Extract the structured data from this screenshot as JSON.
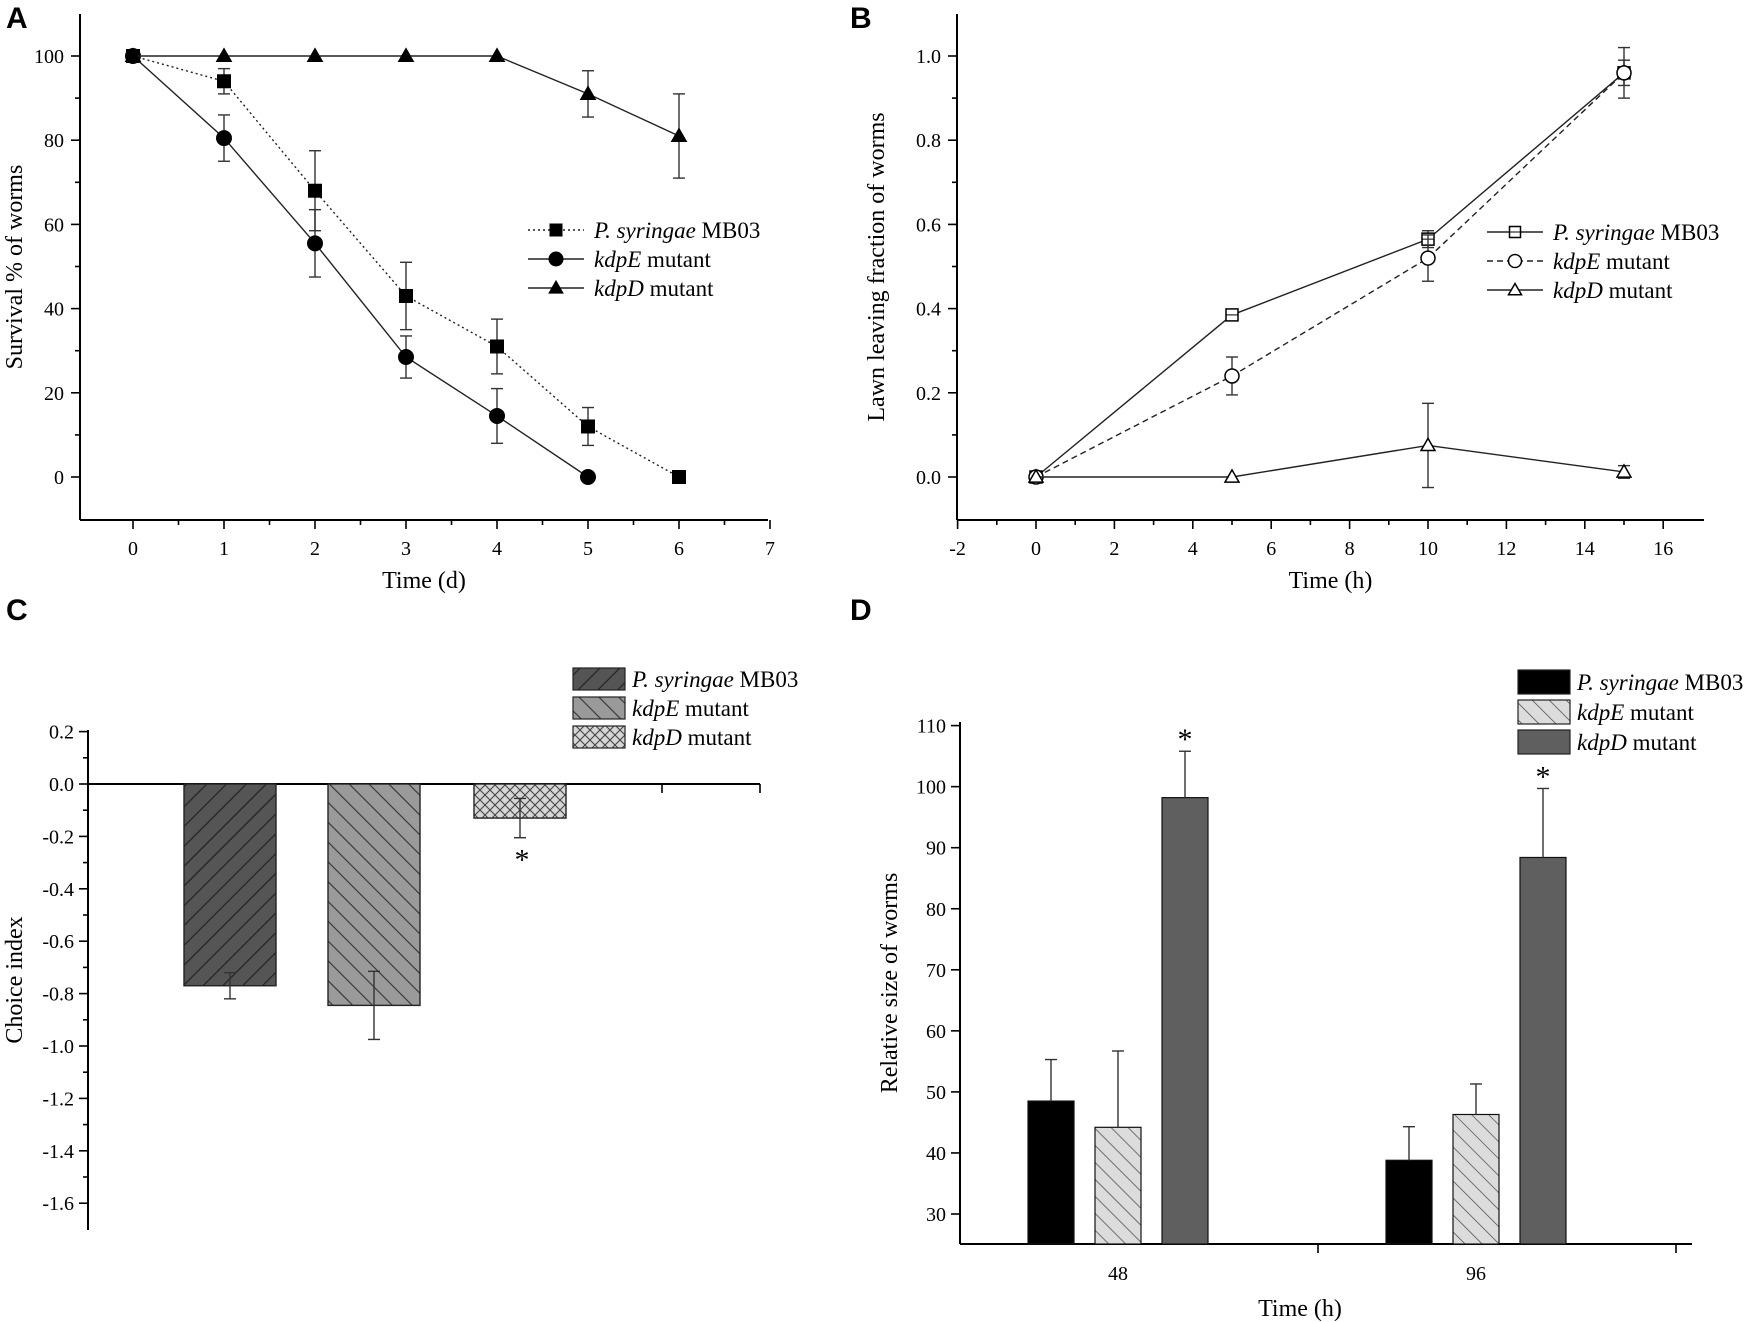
{
  "chart_data": [
    {
      "panel": "A",
      "type": "line",
      "xlabel": "Time (d)",
      "ylabel": "Survival % of worms",
      "xlim": [
        -0.5,
        7
      ],
      "ylim": [
        -10,
        110
      ],
      "xticks": [
        0,
        1,
        2,
        3,
        4,
        5,
        6,
        7
      ],
      "yticks": [
        0,
        20,
        40,
        60,
        80,
        100
      ],
      "series": [
        {
          "name_italic": "P. syringae",
          "name_rest": " MB03",
          "marker": "square",
          "filled": true,
          "dash": "dotted",
          "x": [
            0,
            1,
            2,
            3,
            4,
            5,
            6
          ],
          "y": [
            100,
            94,
            68,
            43,
            31,
            12,
            0
          ],
          "err": [
            0,
            3,
            9.5,
            8,
            6.5,
            4.5,
            0
          ]
        },
        {
          "name_italic": "kdpE",
          "name_rest": " mutant",
          "marker": "circle",
          "filled": true,
          "dash": "solid",
          "x": [
            0,
            1,
            2,
            3,
            4,
            5
          ],
          "y": [
            100,
            80.5,
            55.5,
            28.5,
            14.5,
            0
          ],
          "err": [
            0,
            5.5,
            8,
            5,
            6.5,
            0
          ]
        },
        {
          "name_italic": "kdpD",
          "name_rest": " mutant",
          "marker": "triangle",
          "filled": true,
          "dash": "solid",
          "x": [
            0,
            1,
            2,
            3,
            4,
            5,
            6
          ],
          "y": [
            100,
            100,
            100,
            100,
            100,
            91,
            81
          ],
          "err": [
            0,
            0,
            0,
            0,
            0,
            5.5,
            10
          ]
        }
      ]
    },
    {
      "panel": "B",
      "type": "line",
      "xlabel": "Time (h)",
      "ylabel": "Lawn leaving fraction of worms",
      "xlim": [
        -2,
        17
      ],
      "ylim": [
        -0.1,
        1.1
      ],
      "xticks": [
        -2,
        0,
        2,
        4,
        6,
        8,
        10,
        12,
        14,
        16
      ],
      "yticks": [
        0.0,
        0.2,
        0.4,
        0.6,
        0.8,
        1.0
      ],
      "ytick_labels": [
        "0.0",
        "0.2",
        "0.4",
        "0.6",
        "0.8",
        "1.0"
      ],
      "series": [
        {
          "name_italic": "P. syringae",
          "name_rest": " MB03",
          "marker": "square",
          "filled": false,
          "dash": "solid",
          "x": [
            0,
            5,
            10,
            15
          ],
          "y": [
            0,
            0.385,
            0.565,
            0.96
          ],
          "err": [
            0,
            0.01,
            0.02,
            0.03
          ]
        },
        {
          "name_italic": "kdpE",
          "name_rest": " mutant",
          "marker": "circle",
          "filled": false,
          "dash": "dashed",
          "x": [
            0,
            5,
            10,
            15
          ],
          "y": [
            0,
            0.24,
            0.52,
            0.96
          ],
          "err": [
            0,
            0.045,
            0.055,
            0.06
          ]
        },
        {
          "name_italic": "kdpD",
          "name_rest": " mutant",
          "marker": "triangle",
          "filled": false,
          "dash": "solid",
          "x": [
            0,
            5,
            10,
            15
          ],
          "y": [
            0,
            0,
            0.075,
            0.012
          ],
          "err": [
            0,
            0,
            0.1,
            0.015
          ]
        }
      ]
    },
    {
      "panel": "C",
      "type": "bar",
      "ylabel": "Choice index",
      "ylim": [
        -1.7,
        0.2
      ],
      "yticks": [
        0.2,
        0.0,
        -0.2,
        -0.4,
        -0.6,
        -0.8,
        -1.0,
        -1.2,
        -1.4,
        -1.6
      ],
      "ytick_labels": [
        "0.2",
        "0.0",
        "-0.2",
        "-0.4",
        "-0.6",
        "-0.8",
        "-1.0",
        "-1.2",
        "-1.4",
        "-1.6"
      ],
      "bars": [
        {
          "name_italic": "P. syringae",
          "name_rest": " MB03",
          "value": -0.77,
          "err": 0.05,
          "pattern": "hatch-dark",
          "star": false
        },
        {
          "name_italic": "kdpE",
          "name_rest": " mutant",
          "value": -0.845,
          "err": 0.13,
          "pattern": "hatch-grey",
          "star": false
        },
        {
          "name_italic": "kdpD",
          "name_rest": " mutant",
          "value": -0.13,
          "err": 0.075,
          "pattern": "crosshatch",
          "star": true
        }
      ],
      "significance_mark": "*"
    },
    {
      "panel": "D",
      "type": "bar",
      "xlabel": "Time (h)",
      "ylabel": "Relative size of worms",
      "ylim": [
        25,
        110
      ],
      "yticks": [
        30,
        40,
        50,
        60,
        70,
        80,
        90,
        100,
        110
      ],
      "categories": [
        "48",
        "96"
      ],
      "series": [
        {
          "name_italic": "P. syringae",
          "name_rest": " MB03",
          "values": [
            48.5,
            38.8
          ],
          "err": [
            6.8,
            5.5
          ],
          "pattern": "solid-black",
          "star": [
            false,
            false
          ]
        },
        {
          "name_italic": "kdpE",
          "name_rest": " mutant",
          "values": [
            44.2,
            46.3
          ],
          "err": [
            12.5,
            5
          ],
          "pattern": "hatch-light",
          "star": [
            false,
            false
          ]
        },
        {
          "name_italic": "kdpD",
          "name_rest": " mutant",
          "values": [
            98.2,
            88.4
          ],
          "err": [
            7.6,
            11.3
          ],
          "pattern": "solid-grey",
          "star": [
            true,
            true
          ]
        }
      ],
      "significance_mark": "*"
    }
  ],
  "colors": {
    "black": "#000000",
    "dark_grey": "#555555",
    "mid_grey": "#9a9a9a",
    "light_grey": "#d6d6d6",
    "bar_grey": "#5f5f5f"
  }
}
